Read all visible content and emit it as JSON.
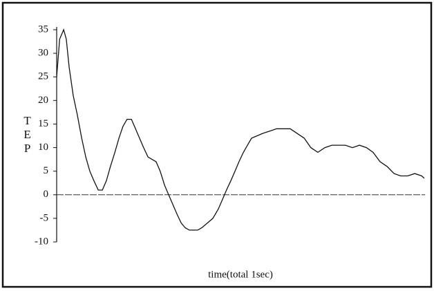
{
  "chart_data": {
    "type": "line",
    "x_label": "time(total 1sec)",
    "y_label": "TEP",
    "xlim": [
      0,
      1
    ],
    "ylim": [
      -10,
      35
    ],
    "yticks": [
      35,
      30,
      25,
      20,
      15,
      10,
      5,
      0,
      -5,
      -10
    ],
    "reference_line": 0,
    "series": [
      {
        "color": "#111111",
        "x": [
          0,
          0.008,
          0.019,
          0.026,
          0.034,
          0.045,
          0.056,
          0.068,
          0.079,
          0.09,
          0.101,
          0.113,
          0.124,
          0.135,
          0.146,
          0.158,
          0.169,
          0.18,
          0.191,
          0.203,
          0.214,
          0.225,
          0.236,
          0.248,
          0.259,
          0.27,
          0.281,
          0.293,
          0.304,
          0.315,
          0.326,
          0.338,
          0.349,
          0.36,
          0.371,
          0.383,
          0.394,
          0.409,
          0.424,
          0.439,
          0.45,
          0.461,
          0.473,
          0.484,
          0.495,
          0.507,
          0.518,
          0.529,
          0.544,
          0.559,
          0.578,
          0.597,
          0.615,
          0.634,
          0.653,
          0.672,
          0.69,
          0.709,
          0.728,
          0.747,
          0.765,
          0.784,
          0.803,
          0.822,
          0.841,
          0.859,
          0.878,
          0.897,
          0.916,
          0.934,
          0.953,
          0.972,
          0.991,
          0.998
        ],
        "values": [
          25,
          33,
          35,
          33,
          27,
          21,
          17,
          12,
          8,
          5,
          3,
          1,
          1,
          3,
          6,
          9,
          12,
          14.5,
          16,
          16,
          14,
          12,
          10,
          8,
          7.5,
          7,
          5,
          2,
          0,
          -2,
          -4,
          -6,
          -7,
          -7.5,
          -7.5,
          -7.5,
          -7,
          -6,
          -5,
          -3,
          -1,
          1,
          3,
          5,
          7,
          9,
          10.5,
          12,
          12.5,
          13,
          13.5,
          14,
          14,
          14,
          13,
          12,
          10,
          9,
          10,
          10.5,
          10.5,
          10.5,
          10,
          10.5,
          10,
          9,
          7,
          6,
          4.5,
          4,
          4,
          4.5,
          4,
          3.5
        ]
      }
    ]
  }
}
